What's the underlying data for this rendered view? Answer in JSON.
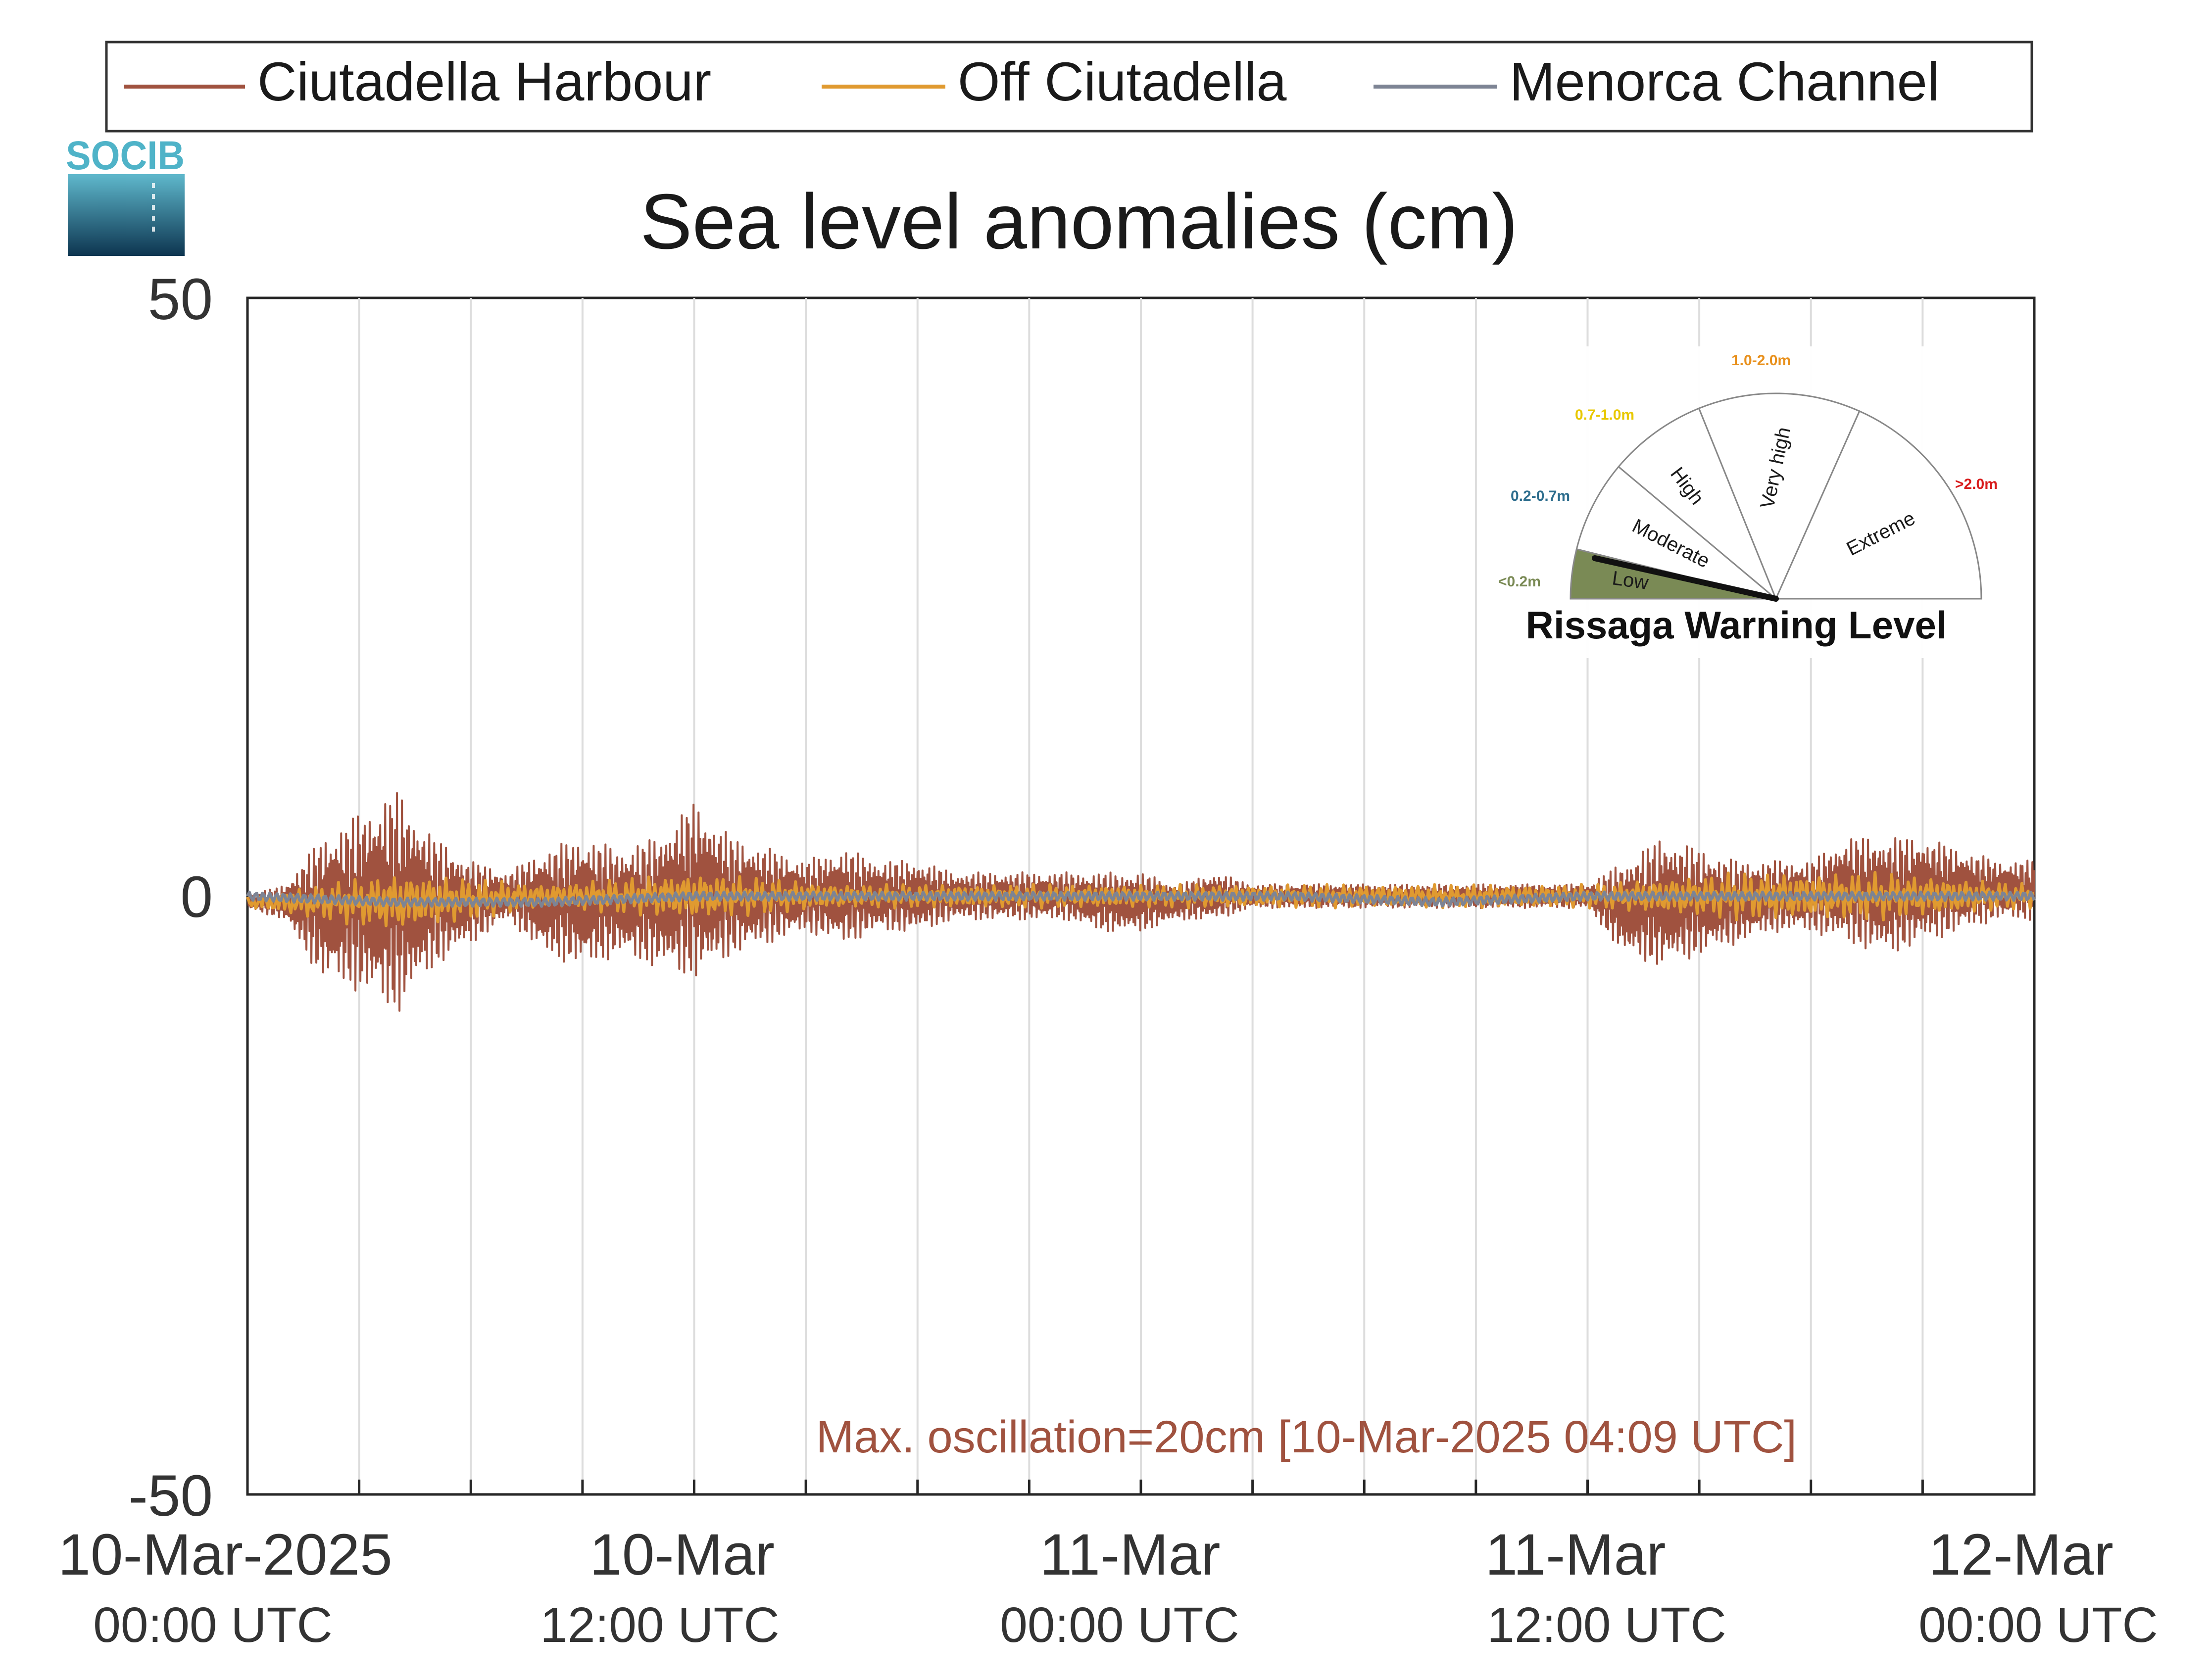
{
  "chart_data": {
    "type": "line",
    "title": "Sea level anomalies (cm)",
    "xlabel": "",
    "ylabel": "",
    "ylim": [
      -50,
      50
    ],
    "y_ticks": [
      "50",
      "0",
      "-50"
    ],
    "x_range_hours": [
      0,
      48
    ],
    "x_tick_labels": [
      {
        "date": "10-Mar-2025",
        "time": "00:00 UTC",
        "hour": 0
      },
      {
        "date": "10-Mar",
        "time": "12:00 UTC",
        "hour": 12
      },
      {
        "date": "11-Mar",
        "time": "00:00 UTC",
        "hour": 24
      },
      {
        "date": "11-Mar",
        "time": "12:00 UTC",
        "hour": 36
      },
      {
        "date": "12-Mar",
        "time": "00:00 UTC",
        "hour": 48
      }
    ],
    "grid": "vertical lines every 3 hours",
    "legend": {
      "placement": "top, above plot",
      "entries": [
        "Ciutadella Harbour",
        "Off Ciutadella",
        "Menorca Channel"
      ]
    },
    "colors": {
      "ciutadella_harbour": "#a0523f",
      "off_ciutadella": "#e09a30",
      "menorca_channel": "#7d8494"
    },
    "series": [
      {
        "name": "Ciutadella Harbour",
        "x_hours": [
          0,
          1,
          2,
          3,
          4,
          5,
          6,
          7,
          8,
          9,
          10,
          11,
          12,
          13,
          14,
          15,
          16,
          17,
          18,
          19,
          20,
          21,
          22,
          23,
          24,
          25,
          26,
          27,
          28,
          29,
          30,
          31,
          32,
          33,
          34,
          35,
          36,
          37,
          38,
          39,
          40,
          41,
          42,
          43,
          44,
          45,
          46,
          47,
          48
        ],
        "envelope_min_cm": [
          -1,
          -2,
          -7,
          -8,
          -10,
          -6,
          -4,
          -2,
          -5,
          -6,
          -5,
          -6,
          -7,
          -5,
          -4,
          -3,
          -4,
          -3,
          -3,
          -2,
          -2,
          -2,
          -2,
          -3,
          -3,
          -2,
          -2,
          -1,
          -1,
          -1,
          -1,
          -1,
          -1,
          -1,
          -1,
          -1,
          -1,
          -5,
          -6,
          -5,
          -4,
          -3,
          -3,
          -4,
          -5,
          -4,
          -3,
          -2,
          -2
        ],
        "envelope_max_cm": [
          0,
          1,
          5,
          7,
          9,
          5,
          3,
          2,
          4,
          5,
          4,
          5,
          8,
          5,
          4,
          3,
          4,
          3,
          3,
          2,
          2,
          2,
          2,
          2,
          2,
          1,
          2,
          1,
          1,
          1,
          1,
          1,
          1,
          1,
          1,
          1,
          1,
          3,
          5,
          4,
          3,
          3,
          3,
          5,
          5,
          5,
          4,
          3,
          3
        ],
        "max_oscillation_cm": 20,
        "max_oscillation_time": "10-Mar-2025 04:09 UTC"
      },
      {
        "name": "Off Ciutadella",
        "x_hours": [
          0,
          4,
          8,
          12,
          16,
          20,
          24,
          28,
          32,
          36,
          40,
          44,
          48
        ],
        "envelope_min_cm": [
          -1,
          -3,
          -1,
          -2,
          -1,
          -1,
          -1,
          -1,
          -1,
          -1,
          -2,
          -2,
          -1
        ],
        "envelope_max_cm": [
          0,
          2,
          1,
          2,
          1,
          1,
          1,
          1,
          1,
          1,
          2,
          2,
          1
        ]
      },
      {
        "name": "Menorca Channel",
        "x_hours": [
          0,
          4,
          8,
          12,
          16,
          20,
          24,
          28,
          32,
          36,
          40,
          44,
          48
        ],
        "values_cm": [
          0,
          -0.5,
          -0.5,
          0,
          0,
          0,
          0,
          0,
          -0.5,
          0,
          0,
          0,
          0
        ]
      }
    ],
    "annotation": "Max. oscillation=20cm [10-Mar-2025 04:09 UTC]"
  },
  "logo": {
    "text": "SOCIB"
  },
  "gauge": {
    "title": "Rissaga Warning Level",
    "current_level": "Low",
    "levels": [
      {
        "name": "Low",
        "range": "<0.2m",
        "color": "#7a8a55"
      },
      {
        "name": "Moderate",
        "range": "0.2-0.7m",
        "color": "#2e6e8e"
      },
      {
        "name": "High",
        "range": "0.7-1.0m",
        "color": "#e8d020"
      },
      {
        "name": "Very high",
        "range": "1.0-2.0m",
        "color": "#e8901c"
      },
      {
        "name": "Extreme",
        "range": ">2.0m",
        "color": "#d81c1c"
      }
    ]
  }
}
